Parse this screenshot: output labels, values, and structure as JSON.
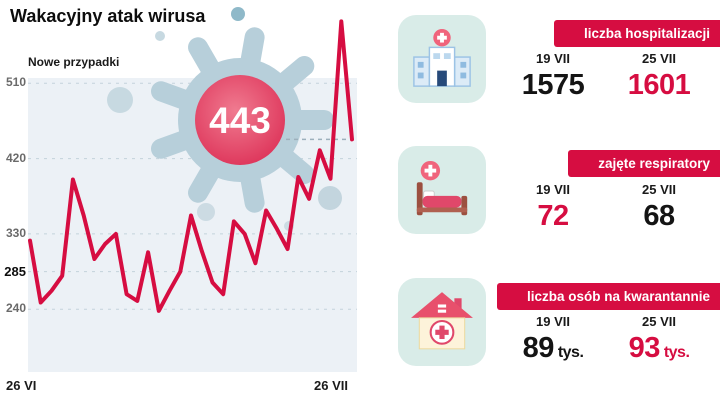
{
  "header": {
    "title": "Wakacyjny atak wirusa"
  },
  "chart_data": {
    "type": "line",
    "title": "Nowe przypadki",
    "x_axis": {
      "start_label": "26 VI",
      "end_label": "26 VII"
    },
    "y_ticks": [
      510,
      420,
      330,
      285,
      240
    ],
    "emphasis_tick": 285,
    "highlight_value": 443,
    "values": [
      322,
      248,
      262,
      280,
      395,
      352,
      300,
      318,
      330,
      258,
      250,
      308,
      238,
      262,
      285,
      352,
      310,
      272,
      258,
      345,
      330,
      295,
      358,
      336,
      312,
      398,
      372,
      430,
      396,
      584,
      443
    ],
    "value_domain": [
      165,
      600
    ],
    "line_color": "#d60d41",
    "grid": "dashed",
    "legend": "none"
  },
  "panels": [
    {
      "icon": "hospital-icon",
      "banner": "liczba hospitalizacji",
      "left": {
        "date": "19 VII",
        "num": "1575",
        "suffix": ""
      },
      "right": {
        "date": "25 VII",
        "num": "1601",
        "suffix": ""
      }
    },
    {
      "icon": "ventilator-bed-icon",
      "banner": "zajęte respiratory",
      "left": {
        "date": "19 VII",
        "num": "72",
        "suffix": ""
      },
      "right": {
        "date": "25 VII",
        "num": "68",
        "suffix": ""
      }
    },
    {
      "icon": "quarantine-house-icon",
      "banner": "liczba osób na kwarantannie",
      "left": {
        "date": "19 VII",
        "num": "89",
        "suffix": " tys."
      },
      "right": {
        "date": "25 VII",
        "num": "93",
        "suffix": " tys."
      }
    }
  ],
  "colors": {
    "accent": "#d60d41",
    "value_dark": "#141414",
    "icon_bg": "#d9ece8",
    "virus_body": "#b7cfda",
    "virus_center": "#e24362",
    "chart_bg": "#ecf1f6"
  }
}
